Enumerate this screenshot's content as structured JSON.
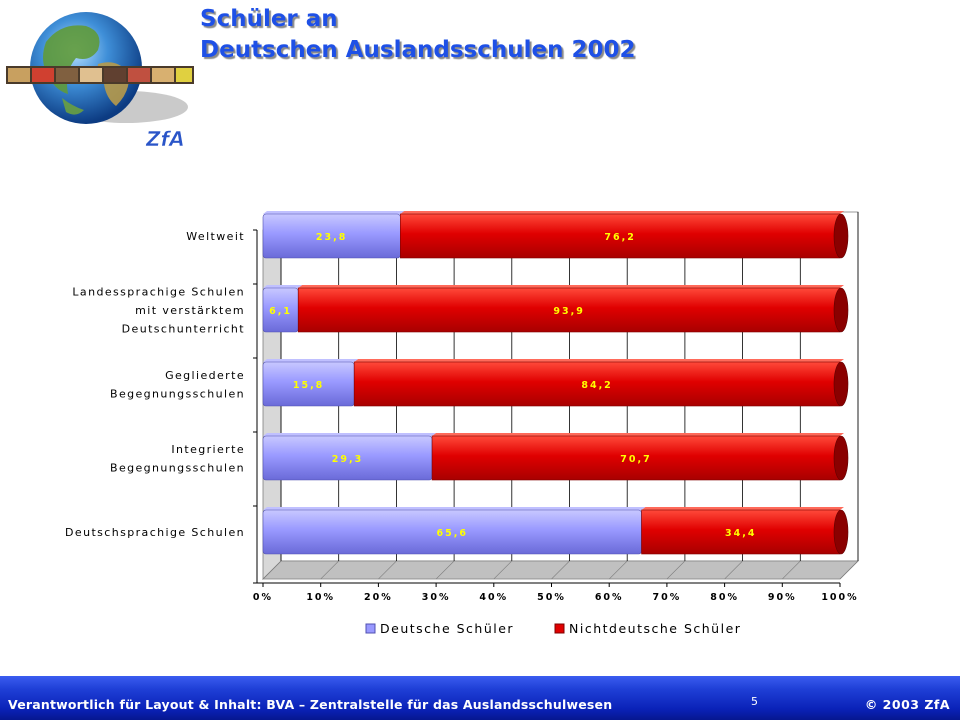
{
  "header": {
    "title_line1": "Schüler an",
    "title_line2": "Deutschen Auslandsschulen 2002",
    "logo_text": "ZfA"
  },
  "footer": {
    "left_text": "Verantwortlich für Layout & Inhalt: BVA – Zentralstelle für das Auslandsschulwesen",
    "page_number": "5",
    "right_text": "© 2003 ZfA"
  },
  "colors": {
    "title": "#1e50e6",
    "deutsche": "#9999ff",
    "nichtdeutsche": "#e00000",
    "data_label": "#ffff00",
    "footer_bg": "#0a22b8"
  },
  "chart_data": {
    "type": "bar",
    "orientation": "horizontal",
    "stacked": true,
    "percent": true,
    "categories": [
      [
        "Weltweit"
      ],
      [
        "Landessprachige Schulen",
        "mit verstärktem",
        "Deutschunterricht"
      ],
      [
        "Gegliederte",
        "Begegnungsschulen"
      ],
      [
        "Integrierte",
        "Begegnungsschulen"
      ],
      [
        "Deutschsprachige Schulen"
      ]
    ],
    "series": [
      {
        "name": "Deutsche Schüler",
        "values": [
          23.8,
          6.1,
          15.8,
          29.3,
          65.6
        ],
        "labels": [
          "23,8",
          "6,1",
          "15,8",
          "29,3",
          "65,6"
        ]
      },
      {
        "name": "Nichtdeutsche Schüler",
        "values": [
          76.2,
          93.9,
          84.2,
          70.7,
          34.4
        ],
        "labels": [
          "76,2",
          "93,9",
          "84,2",
          "70,7",
          "34,4"
        ]
      }
    ],
    "xlim": [
      0,
      100
    ],
    "xticks": [
      "0%",
      "10%",
      "20%",
      "30%",
      "40%",
      "50%",
      "60%",
      "70%",
      "80%",
      "90%",
      "100%"
    ],
    "grid": true,
    "legend": "bottom"
  }
}
